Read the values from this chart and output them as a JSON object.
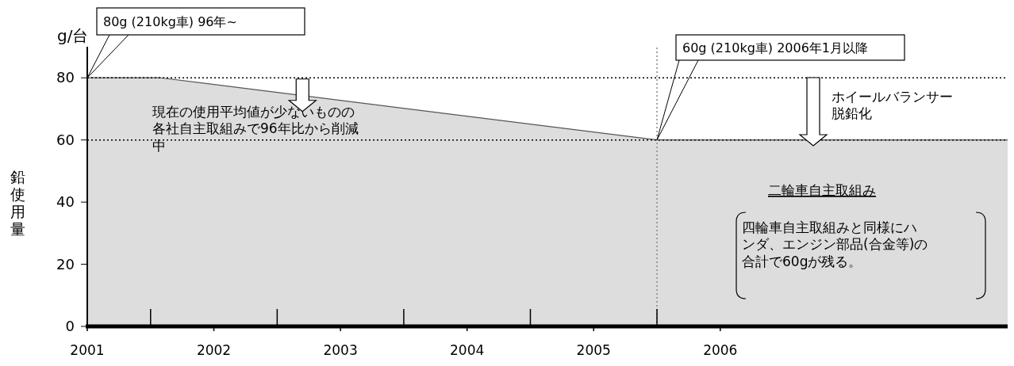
{
  "chart_data": {
    "type": "area",
    "ylabel": "鉛使用量",
    "x": [
      2001,
      2001.58,
      2005.5,
      2008.27
    ],
    "series": [
      {
        "color": "#dddddd",
        "values": [
          80,
          80,
          60,
          60
        ]
      }
    ],
    "xlim": [
      2001,
      2008.27
    ],
    "ylim": [
      0,
      90
    ],
    "xticks": [
      2001,
      2002,
      2003,
      2004,
      2005,
      2006
    ],
    "yticks": [
      0,
      20,
      40,
      60,
      80
    ],
    "ref_lines": [
      {
        "axis": "y",
        "value": 80,
        "label": null,
        "color": "#000000",
        "line_style": "dotted"
      },
      {
        "axis": "y",
        "value": 60,
        "label": null,
        "color": "#000000",
        "line_style": "dotted"
      },
      {
        "axis": "x",
        "value": 2005.5,
        "label": null,
        "color": "#888888",
        "line_style": "dotted"
      }
    ],
    "annotations": [
      {
        "text": "80g (210kg車) 96年~",
        "x": 2001,
        "y": 80
      },
      {
        "text": "60g (210kg車) 2006年1月以降",
        "x": 2005.5,
        "y": 60
      },
      "g/台",
      {
        "text": "現在の使用平均値が少ないものの各社自主取組みで96年比から削減中",
        "x": 2002.7,
        "y": 74
      },
      "ホイールバランサー脱鉛化",
      "二輪車自主取組み",
      "四輪車自主取組みと同様にハンダ、エンジン部品(合金等)の合計で60gが残る。"
    ]
  }
}
